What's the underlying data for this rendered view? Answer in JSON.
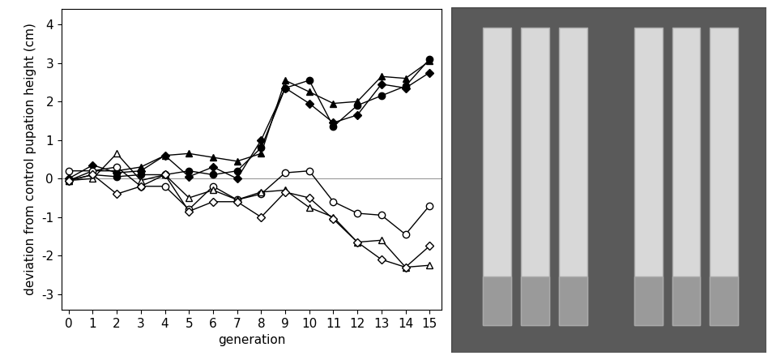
{
  "chart_data": {
    "type": "line",
    "xlabel": "generation",
    "ylabel": "deviation from control pupation height (cm)",
    "x": [
      0,
      1,
      2,
      3,
      4,
      5,
      6,
      7,
      8,
      9,
      10,
      11,
      12,
      13,
      14,
      15
    ],
    "series": [
      {
        "color": "#000000",
        "marker": "filled_circle",
        "line_style": "solid",
        "values": [
          -0.05,
          0.1,
          0.05,
          0.1,
          0.1,
          0.2,
          0.1,
          0.2,
          0.8,
          2.35,
          2.55,
          1.35,
          1.9,
          2.15,
          2.4,
          3.1
        ]
      },
      {
        "color": "#000000",
        "marker": "filled_triangle",
        "line_style": "solid",
        "values": [
          -0.05,
          0.2,
          0.2,
          0.3,
          0.6,
          0.65,
          0.55,
          0.45,
          0.65,
          2.55,
          2.25,
          1.95,
          2.0,
          2.65,
          2.6,
          3.05
        ]
      },
      {
        "color": "#000000",
        "marker": "filled_diamond",
        "line_style": "solid",
        "values": [
          0.0,
          0.35,
          0.15,
          0.2,
          0.6,
          0.05,
          0.3,
          0.0,
          1.0,
          2.35,
          1.95,
          1.45,
          1.65,
          2.45,
          2.35,
          2.75
        ]
      },
      {
        "color": "#000000",
        "marker": "open_circle",
        "line_style": "solid",
        "values": [
          0.2,
          0.2,
          0.3,
          -0.2,
          -0.2,
          -0.8,
          -0.2,
          -0.55,
          -0.4,
          0.15,
          0.2,
          -0.6,
          -0.9,
          -0.95,
          -1.45,
          -0.7
        ]
      },
      {
        "color": "#000000",
        "marker": "open_triangle",
        "line_style": "solid",
        "values": [
          -0.05,
          0.0,
          0.65,
          -0.05,
          0.1,
          -0.5,
          -0.3,
          -0.55,
          -0.35,
          -0.3,
          -0.75,
          -1.0,
          -1.65,
          -1.6,
          -2.3,
          -2.25
        ]
      },
      {
        "color": "#000000",
        "marker": "open_diamond",
        "line_style": "solid",
        "values": [
          -0.05,
          0.1,
          -0.4,
          -0.2,
          0.1,
          -0.85,
          -0.6,
          -0.6,
          -1.0,
          -0.35,
          -0.5,
          -1.05,
          -1.65,
          -2.1,
          -2.3,
          -1.75
        ]
      }
    ],
    "reference_y": 0,
    "xlim": [
      -0.3,
      15.5
    ],
    "xticks": [
      0,
      1,
      2,
      3,
      4,
      5,
      6,
      7,
      8,
      9,
      10,
      11,
      12,
      13,
      14,
      15
    ],
    "ylim": [
      -3.4,
      4.4
    ],
    "yticks": [
      -3,
      -2,
      -1,
      0,
      1,
      2,
      3,
      4
    ],
    "grid": false
  }
}
